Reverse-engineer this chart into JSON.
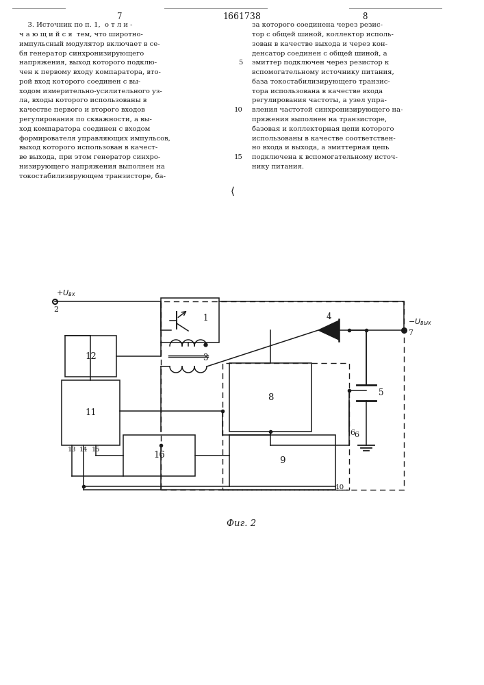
{
  "page_number_left": "7",
  "page_number_center": "1661738",
  "page_number_right": "8",
  "left_lines": [
    "    3. Источник по п. 1,  о т л и -",
    "ч а ю щ и й с я  тем, что широтно-",
    "импульсный модулятор включает в се-",
    "бя генератор синхронизирующего",
    "напряжения, выход которого подклю-",
    "чен к первому входу компаратора, вто-",
    "рой вход которого соединен с вы-",
    "ходом измерительно-усилительного уз-",
    "ла, входы которого использованы в",
    "качестве первого и второго входов",
    "регулирования по скважности, а вы-",
    "ход компаратора соединен с входом",
    "формирователя управляющих импульсов,",
    "выход которого использован в качест-",
    "ве выхода, при этом генератор синхро-",
    "низирующего напряжения выполнен на",
    "токостабилизирующем транзисторе, ба-"
  ],
  "right_lines": [
    "за которого соединена через резис-",
    "тор с общей шиной, коллектор исполь-",
    "зован в качестве выхода и через кон-",
    "денсатор соединен с общей шиной, а",
    "эмиттер подключен через резистор к",
    "вспомогательному источнику питания,",
    "база токостабилизирующего транзис-",
    "тора использована в качестве входа",
    "регулирования частоты, а узел упра-",
    "вления частотой синхронизирующего на-",
    "пряжения выполнен на транзисторе,",
    "базовая и коллекторная цепи которого",
    "использованы в качестве соответствен-",
    "но входа и выхода, а эмиттерная цепь",
    "подключена к вспомогательному источ-",
    "нику питания."
  ],
  "figure_caption": "Фиг. 2",
  "background_color": "#ffffff",
  "text_color": "#1a1a1a"
}
